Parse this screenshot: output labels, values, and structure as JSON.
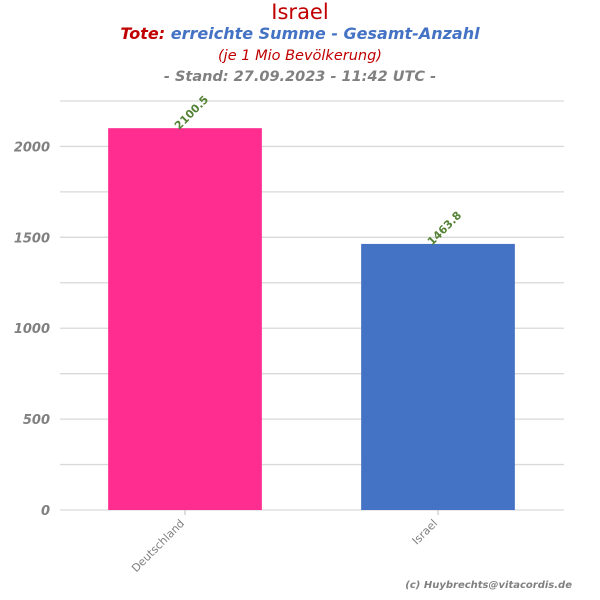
{
  "header": {
    "title": "Israel",
    "subtitle_prefix": "Tote:",
    "subtitle_rest": " erreichte Summe - Gesamt-Anzahl",
    "note": "(je 1 Mio Bevölkerung)",
    "stand": "- Stand: 27.09.2023 - 11:42 UTC -"
  },
  "footer": {
    "credit": "(c) Huybrechts@vitacordis.de"
  },
  "colors": {
    "deutschland": "#ff2d8f",
    "israel": "#4472c4",
    "grid": "#d9d9d9",
    "label": "#548235"
  },
  "chart_data": {
    "type": "bar",
    "categories": [
      "Deutschland",
      "Israel"
    ],
    "values": [
      2100.5,
      1463.8
    ],
    "data_labels": [
      "2100.5",
      "1463.8"
    ],
    "title": "Israel",
    "xlabel": "",
    "ylabel": "",
    "ylim": [
      0,
      2250
    ],
    "yticks": [
      0,
      500,
      1000,
      1500,
      2000
    ],
    "ytick_labels": [
      "0",
      "500",
      "1000",
      "1500",
      "2000"
    ],
    "grid": true,
    "legend": "none"
  }
}
